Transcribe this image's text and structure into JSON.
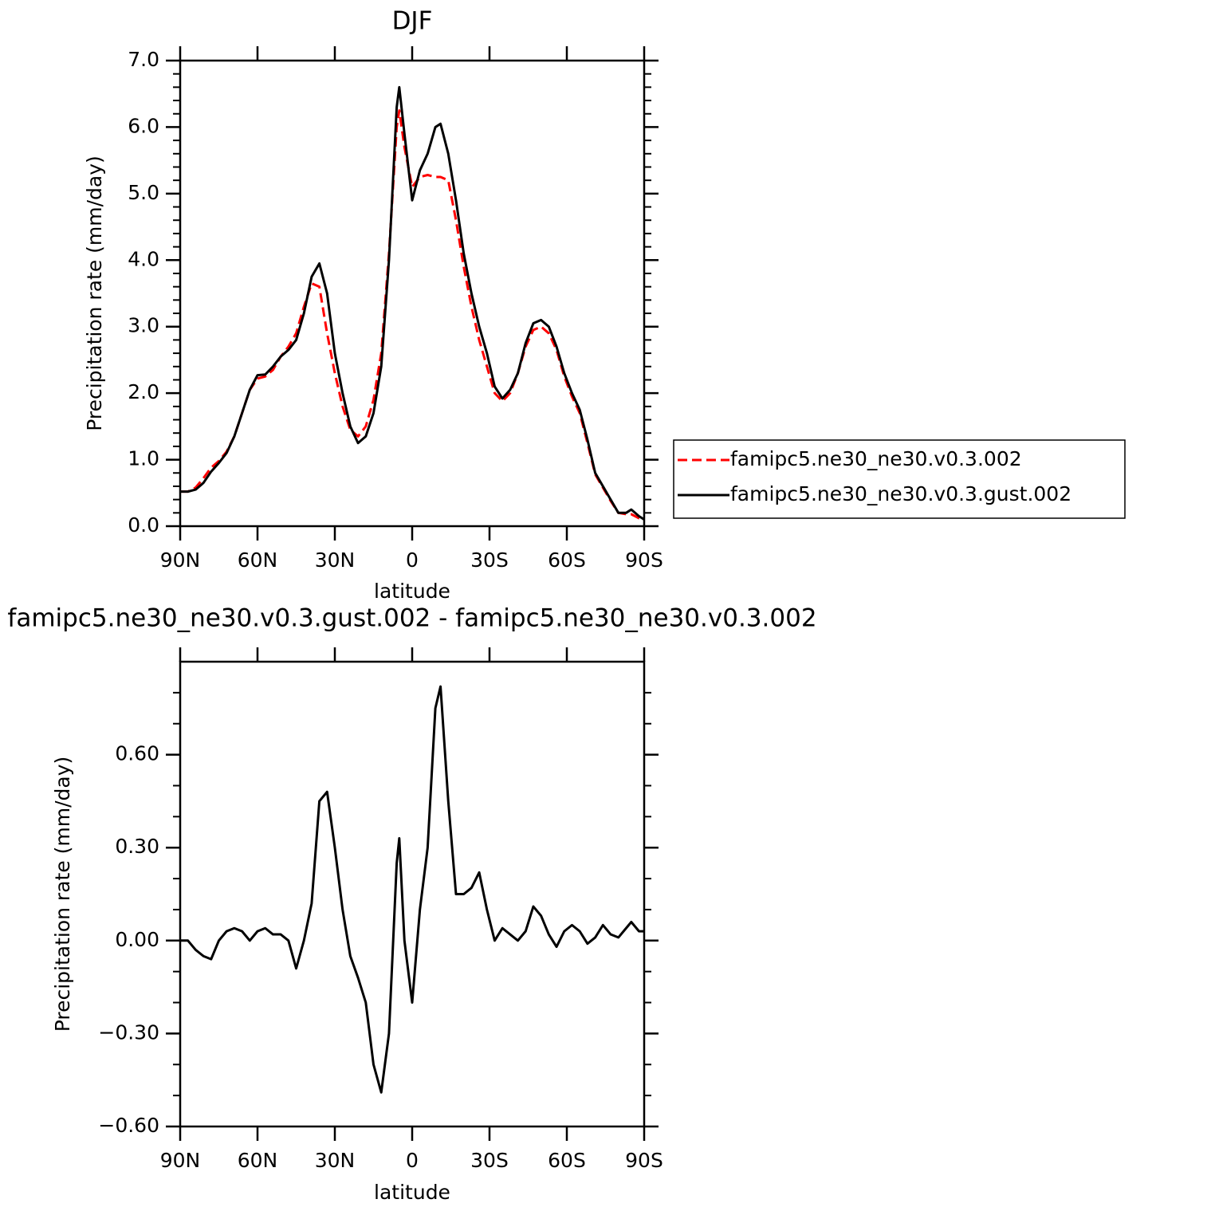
{
  "chart_data": [
    {
      "type": "line",
      "title": "DJF",
      "x_label": "latitude",
      "y_label": "Precipitation rate (mm/day)",
      "x": [
        90,
        87,
        84,
        81,
        78,
        75,
        72,
        69,
        66,
        63,
        60,
        57,
        54,
        51,
        48,
        45,
        42,
        39,
        36,
        33,
        30,
        27,
        24,
        21,
        18,
        15,
        12,
        9,
        6,
        5,
        3,
        0,
        -3,
        -6,
        -9,
        -11,
        -14,
        -17,
        -20,
        -23,
        -26,
        -29,
        -32,
        -35,
        -38,
        -41,
        -44,
        -47,
        -50,
        -53,
        -56,
        -59,
        -62,
        -65,
        -68,
        -71,
        -74,
        -77,
        -80,
        -83,
        -85,
        -88,
        -90
      ],
      "xlim": [
        90,
        -90
      ],
      "xticks": [
        {
          "value": 90,
          "label": "90N"
        },
        {
          "value": 60,
          "label": "60N"
        },
        {
          "value": 30,
          "label": "30N"
        },
        0,
        {
          "value": -30,
          "label": "30S"
        },
        {
          "value": -60,
          "label": "60S"
        },
        {
          "value": -90,
          "label": "90S"
        }
      ],
      "ylim": [
        0,
        7
      ],
      "yticks": [
        {
          "value": 0,
          "label": "0.0"
        },
        {
          "value": 1,
          "label": "1.0"
        },
        {
          "value": 2,
          "label": "2.0"
        },
        {
          "value": 3,
          "label": "3.0"
        },
        {
          "value": 4,
          "label": "4.0"
        },
        {
          "value": 5,
          "label": "5.0"
        },
        {
          "value": 6,
          "label": "6.0"
        },
        {
          "value": 7,
          "label": "7.0"
        }
      ],
      "legend": "right",
      "series": [
        {
          "name": "famipc5.ne30_ne30.v0.3.002",
          "color": "#ff0000",
          "line_style": "dashed",
          "values": [
            0.52,
            0.52,
            0.58,
            0.72,
            0.88,
            0.98,
            1.12,
            1.35,
            1.7,
            2.05,
            2.22,
            2.25,
            2.35,
            2.55,
            2.7,
            2.9,
            3.3,
            3.65,
            3.6,
            2.9,
            2.3,
            1.8,
            1.45,
            1.35,
            1.5,
            1.9,
            2.6,
            4.1,
            6.0,
            6.25,
            5.7,
            5.1,
            5.25,
            5.28,
            5.25,
            5.25,
            5.2,
            4.6,
            3.9,
            3.3,
            2.8,
            2.4,
            2.0,
            1.88,
            2.0,
            2.3,
            2.7,
            2.95,
            3.0,
            2.9,
            2.65,
            2.25,
            1.95,
            1.7,
            1.25,
            0.78,
            0.58,
            0.38,
            0.2,
            0.18,
            0.18,
            0.12,
            0.1
          ]
        },
        {
          "name": "famipc5.ne30_ne30.v0.3.gust.002",
          "color": "#000000",
          "line_style": "solid",
          "values": [
            0.52,
            0.52,
            0.55,
            0.65,
            0.82,
            0.95,
            1.1,
            1.35,
            1.7,
            2.05,
            2.27,
            2.28,
            2.4,
            2.55,
            2.65,
            2.8,
            3.2,
            3.75,
            3.95,
            3.5,
            2.6,
            2.0,
            1.5,
            1.25,
            1.35,
            1.7,
            2.4,
            4.0,
            6.3,
            6.6,
            5.9,
            4.9,
            5.35,
            5.6,
            6.0,
            6.05,
            5.6,
            4.9,
            4.1,
            3.5,
            3.0,
            2.6,
            2.1,
            1.92,
            2.05,
            2.3,
            2.75,
            3.05,
            3.1,
            3.0,
            2.7,
            2.3,
            2.0,
            1.75,
            1.3,
            0.8,
            0.6,
            0.4,
            0.2,
            0.2,
            0.25,
            0.15,
            0.1
          ]
        }
      ]
    },
    {
      "type": "line",
      "title": "famipc5.ne30_ne30.v0.3.gust.002 - famipc5.ne30_ne30.v0.3.002",
      "x_label": "latitude",
      "y_label": "Precipitation rate (mm/day)",
      "x": [
        90,
        87,
        84,
        81,
        78,
        75,
        72,
        69,
        66,
        63,
        60,
        57,
        54,
        51,
        48,
        45,
        42,
        39,
        36,
        33,
        30,
        27,
        24,
        21,
        18,
        15,
        12,
        9,
        6,
        5,
        3,
        0,
        -3,
        -6,
        -9,
        -11,
        -14,
        -17,
        -20,
        -23,
        -26,
        -29,
        -32,
        -35,
        -38,
        -41,
        -44,
        -47,
        -50,
        -53,
        -56,
        -59,
        -62,
        -65,
        -68,
        -71,
        -74,
        -77,
        -80,
        -83,
        -85,
        -88,
        -90
      ],
      "xlim": [
        90,
        -90
      ],
      "xticks": [
        {
          "value": 90,
          "label": "90N"
        },
        {
          "value": 60,
          "label": "60N"
        },
        {
          "value": 30,
          "label": "30N"
        },
        0,
        {
          "value": -30,
          "label": "30S"
        },
        {
          "value": -60,
          "label": "60S"
        },
        {
          "value": -90,
          "label": "90S"
        }
      ],
      "ylim": [
        -0.6,
        0.9
      ],
      "yticks": [
        {
          "value": -0.6,
          "label": "−0.60"
        },
        {
          "value": -0.3,
          "label": "−0.30"
        },
        {
          "value": 0,
          "label": "0.00"
        },
        {
          "value": 0.3,
          "label": "0.30"
        },
        {
          "value": 0.6,
          "label": "0.60"
        }
      ],
      "series": [
        {
          "color": "#000000",
          "line_style": "solid",
          "values": [
            0.0,
            0.0,
            -0.03,
            -0.05,
            -0.06,
            0.0,
            0.03,
            0.04,
            0.03,
            0.0,
            0.03,
            0.04,
            0.02,
            0.02,
            0.0,
            -0.09,
            0.0,
            0.12,
            0.45,
            0.48,
            0.3,
            0.1,
            -0.05,
            -0.12,
            -0.2,
            -0.4,
            -0.49,
            -0.3,
            0.25,
            0.33,
            0.0,
            -0.2,
            0.1,
            0.3,
            0.75,
            0.82,
            0.45,
            0.15,
            0.15,
            0.17,
            0.22,
            0.1,
            0.0,
            0.04,
            0.02,
            0.0,
            0.03,
            0.11,
            0.08,
            0.02,
            -0.02,
            0.03,
            0.05,
            0.03,
            -0.01,
            0.01,
            0.05,
            0.02,
            0.01,
            0.04,
            0.06,
            0.03,
            0.03
          ]
        }
      ]
    }
  ]
}
